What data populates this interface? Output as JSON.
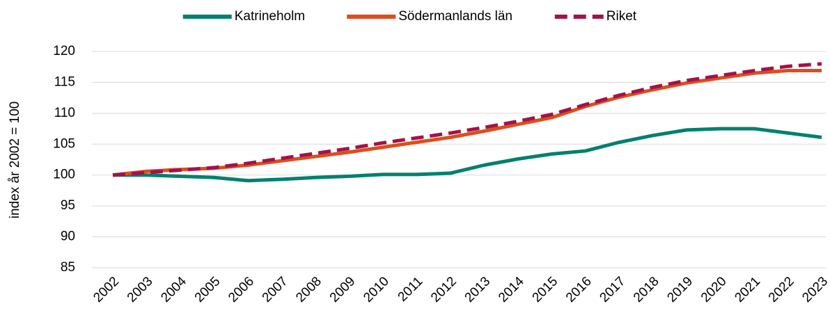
{
  "chart_data": {
    "type": "line",
    "y_label": "index år 2002 = 100",
    "categories": [
      "2002",
      "2003",
      "2004",
      "2005",
      "2006",
      "2007",
      "2008",
      "2009",
      "2010",
      "2011",
      "2012",
      "2013",
      "2014",
      "2015",
      "2016",
      "2017",
      "2018",
      "2019",
      "2020",
      "2021",
      "2022",
      "2023"
    ],
    "series": [
      {
        "name": "Katrineholm",
        "color": "#00806e",
        "dashed": false,
        "values": [
          100,
          100.0,
          99.8,
          99.6,
          99.1,
          99.3,
          99.6,
          99.8,
          100.1,
          100.1,
          100.3,
          101.6,
          102.6,
          103.4,
          103.9,
          105.3,
          106.4,
          107.3,
          107.5,
          107.5,
          106.8,
          106.1
        ]
      },
      {
        "name": "Södermanlands län",
        "color": "#dc4e1c",
        "dashed": false,
        "values": [
          100,
          100.6,
          100.9,
          101.1,
          101.6,
          102.3,
          103.0,
          103.7,
          104.5,
          105.3,
          106.1,
          107.1,
          108.2,
          109.3,
          111.1,
          112.6,
          113.8,
          114.9,
          115.7,
          116.5,
          116.9,
          116.9
        ]
      },
      {
        "name": "Riket",
        "color": "#a3124a",
        "dashed": true,
        "values": [
          100,
          100.4,
          100.8,
          101.2,
          101.9,
          102.7,
          103.5,
          104.3,
          105.2,
          106.0,
          106.8,
          107.7,
          108.7,
          109.8,
          111.4,
          112.9,
          114.2,
          115.3,
          116.1,
          116.9,
          117.6,
          118.0
        ]
      }
    ],
    "ylim": [
      85,
      120
    ],
    "yticks": [
      85,
      90,
      95,
      100,
      105,
      110,
      115,
      120
    ],
    "grid": true,
    "legend": "top"
  }
}
